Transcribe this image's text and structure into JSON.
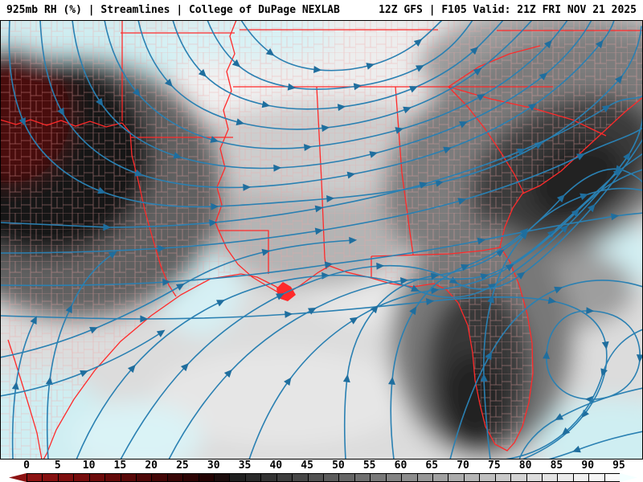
{
  "header": {
    "left": "925mb RH (%) | Streamlines | College of DuPage NEXLAB",
    "right": "12Z GFS | F105 Valid: 21Z FRI NOV 21 2025"
  },
  "map": {
    "description": "925mb relative humidity (%) shading with wind streamlines over the south-central and southeastern United States, Gulf of Mexico and Florida",
    "streamline_color": "#2a80b2",
    "arrowhead_color": "#1f6e9e",
    "state_border_color": "#ff2a2a",
    "county_border_color": "#f0a4a4",
    "high_rh_tint": "#cfeef2",
    "dry_core_color": "#480707",
    "frame_color": "#000000"
  },
  "colorbar": {
    "unit": "%",
    "tick_labels": [
      "0",
      "5",
      "10",
      "15",
      "20",
      "25",
      "30",
      "35",
      "40",
      "45",
      "50",
      "55",
      "60",
      "65",
      "70",
      "75",
      "80",
      "85",
      "90",
      "95"
    ],
    "segment_colors": [
      "#8c1212",
      "#861010",
      "#7e0e0e",
      "#760c0c",
      "#6d0b0b",
      "#630909",
      "#590808",
      "#4e0707",
      "#430606",
      "#380505",
      "#2d0404",
      "#230303",
      "#1b0c0c",
      "#1f1f1f",
      "#292929",
      "#333333",
      "#3d3d3d",
      "#474747",
      "#515151",
      "#5b5b5b",
      "#656565",
      "#6f6f6f",
      "#797979",
      "#838383",
      "#8d8d8d",
      "#979797",
      "#a1a1a1",
      "#ababab",
      "#b5b5b5",
      "#bfbfbf",
      "#c9c9c9",
      "#d3d3d3",
      "#dcdcdc",
      "#e3e3e3",
      "#eaeaea",
      "#f0f0f0",
      "#f5f5f5",
      "#fafafa"
    ],
    "left_arrow_color": "#8c1212",
    "right_arrow_color": "#f4ffff"
  }
}
